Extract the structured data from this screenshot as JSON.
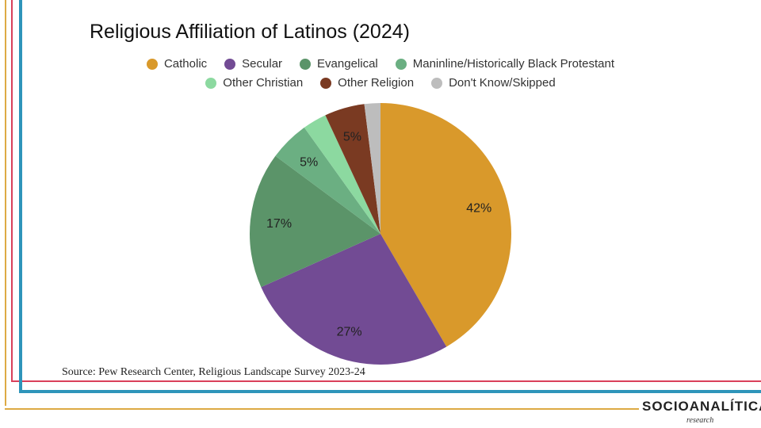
{
  "chart_data": {
    "type": "pie",
    "title": "Religious Affiliation of Latinos (2024)",
    "categories": [
      "Catholic",
      "Secular",
      "Evangelical",
      "Maninline/Historically Black Protestant",
      "Other Christian",
      "Other Religion",
      "Don't Know/Skipped"
    ],
    "values": [
      42,
      27,
      17,
      5,
      3,
      5,
      2
    ],
    "data_labels": [
      "42%",
      "27%",
      "17%",
      "5%",
      "",
      "5%",
      ""
    ],
    "colors": [
      "#D9992B",
      "#724B94",
      "#5B9469",
      "#6BAF82",
      "#8CD9A0",
      "#7A3A22",
      "#BDBDBD"
    ],
    "legend_position": "top",
    "start": "top, clockwise"
  },
  "source": "Source: Pew Research Center, Religious Landscape Survey 2023-24",
  "logo": {
    "name": "SOCIOANALÍTICA",
    "sub": "research"
  }
}
